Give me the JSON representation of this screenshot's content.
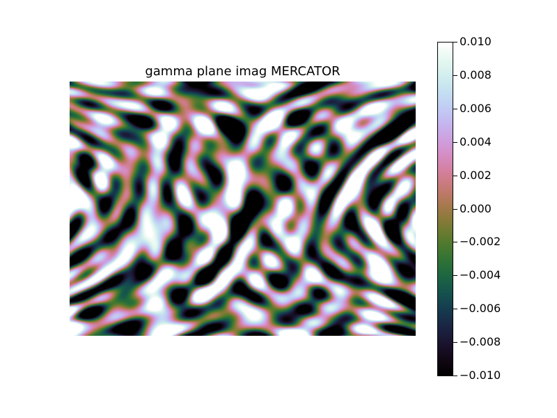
{
  "chart_data": {
    "type": "heatmap",
    "title": "gamma plane imag MERCATOR",
    "xlabel": "",
    "ylabel": "",
    "colormap": "cubehelix",
    "colorbar": {
      "min": -0.01,
      "max": 0.01,
      "ticks": [
        {
          "value": 0.01,
          "label": "0.010"
        },
        {
          "value": 0.008,
          "label": "0.008"
        },
        {
          "value": 0.006,
          "label": "0.006"
        },
        {
          "value": 0.004,
          "label": "0.004"
        },
        {
          "value": 0.002,
          "label": "0.002"
        },
        {
          "value": 0.0,
          "label": "0.000"
        },
        {
          "value": -0.002,
          "label": "−0.002"
        },
        {
          "value": -0.004,
          "label": "−0.004"
        },
        {
          "value": -0.006,
          "label": "−0.006"
        },
        {
          "value": -0.008,
          "label": "−0.008"
        },
        {
          "value": -0.01,
          "label": "−0.010"
        }
      ]
    },
    "grid": false,
    "axes_ticks_shown": false
  }
}
